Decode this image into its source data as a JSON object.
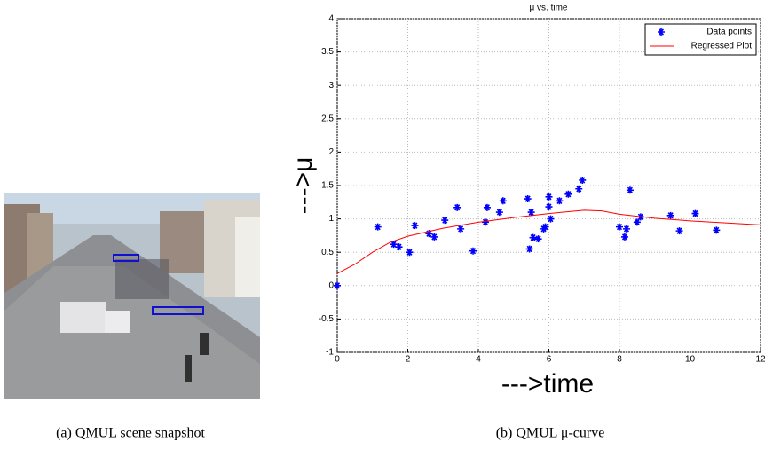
{
  "chart_data": {
    "type": "scatter",
    "title": "μ vs. time",
    "xlabel": "--->time",
    "ylabel": "--->μ",
    "xlim": [
      0,
      12
    ],
    "ylim": [
      -1,
      4
    ],
    "xticks": [
      0,
      2,
      4,
      6,
      8,
      10,
      12
    ],
    "yticks": [
      -1,
      -0.5,
      0,
      0.5,
      1,
      1.5,
      2,
      2.5,
      3,
      3.5,
      4
    ],
    "grid": true,
    "legend": "top-right",
    "series": [
      {
        "name": "Data points",
        "type": "scatter",
        "color": "#0000ff",
        "x": [
          0,
          1.15,
          1.6,
          1.75,
          2.05,
          2.2,
          2.6,
          2.75,
          3.05,
          3.4,
          3.5,
          3.85,
          4.2,
          4.25,
          4.6,
          4.7,
          5.4,
          5.45,
          5.5,
          5.55,
          5.7,
          5.85,
          5.9,
          6.0,
          6.0,
          6.05,
          6.3,
          6.55,
          6.85,
          6.95,
          8.0,
          8.15,
          8.2,
          8.3,
          8.5,
          8.6,
          9.45,
          9.7,
          10.15,
          10.75
        ],
        "values": [
          0,
          0.88,
          0.62,
          0.58,
          0.5,
          0.9,
          0.78,
          0.73,
          0.98,
          1.17,
          0.85,
          0.52,
          0.95,
          1.17,
          1.1,
          1.27,
          1.3,
          0.55,
          1.1,
          0.72,
          0.7,
          0.85,
          0.88,
          1.18,
          1.33,
          1.0,
          1.27,
          1.37,
          1.45,
          1.58,
          0.88,
          0.73,
          0.85,
          1.43,
          0.95,
          1.03,
          1.05,
          0.82,
          1.08,
          0.83
        ]
      },
      {
        "name": "Regressed Plot",
        "type": "line",
        "color": "#ff0000",
        "x": [
          0,
          0.5,
          1,
          1.5,
          2,
          3,
          4,
          5,
          6,
          7,
          7.5,
          8,
          9,
          10,
          11,
          12
        ],
        "values": [
          0.18,
          0.32,
          0.5,
          0.65,
          0.74,
          0.86,
          0.95,
          1.02,
          1.08,
          1.13,
          1.12,
          1.07,
          1.01,
          0.97,
          0.94,
          0.91
        ]
      }
    ]
  },
  "captions": [
    "(a) QMUL scene snapshot",
    "(b) QMUL μ-curve"
  ]
}
